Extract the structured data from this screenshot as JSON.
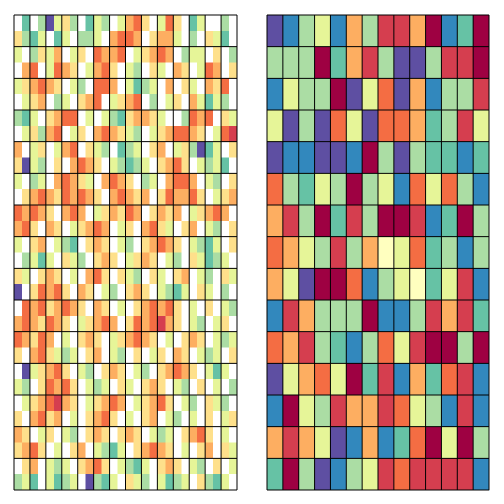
{
  "chart_data": [
    {
      "type": "heatmap",
      "colors": [
        "#9e0142",
        "#d53e4f",
        "#f46d43",
        "#fdae61",
        "#fee08b",
        "#ffffff",
        "#e6f598",
        "#abdda4",
        "#66c2a5",
        "#3288bd",
        "#5e4fa2"
      ],
      "xlim": [
        0,
        28
      ],
      "xticks": [
        0,
        2,
        4,
        6,
        8,
        10,
        12,
        14,
        16,
        18,
        20,
        22,
        24,
        26,
        28
      ],
      "ylim": [
        0,
        30
      ],
      "yticks": [
        0,
        2,
        4,
        6,
        8,
        10,
        12,
        14,
        16,
        18,
        20,
        22,
        24,
        26,
        28,
        30
      ],
      "grid": true,
      "values": [
        [
          5,
          8,
          5,
          7,
          10,
          6,
          4,
          7,
          5,
          8,
          6,
          7,
          5,
          6,
          3,
          2,
          4,
          5,
          6,
          2,
          4,
          5,
          8,
          6,
          5,
          5,
          7,
          5
        ],
        [
          4,
          7,
          8,
          6,
          5,
          8,
          6,
          5,
          7,
          7,
          6,
          5,
          3,
          2,
          2,
          3,
          5,
          4,
          3,
          3,
          6,
          5,
          7,
          5,
          4,
          6,
          8,
          5
        ],
        [
          6,
          5,
          7,
          4,
          6,
          3,
          5,
          6,
          4,
          5,
          2,
          3,
          3,
          2,
          5,
          6,
          4,
          3,
          2,
          3,
          5,
          7,
          6,
          6,
          5,
          4,
          5,
          7
        ],
        [
          5,
          3,
          2,
          5,
          6,
          2,
          3,
          4,
          5,
          6,
          3,
          2,
          4,
          5,
          6,
          7,
          5,
          4,
          6,
          5,
          3,
          4,
          5,
          6,
          2,
          3,
          5,
          4
        ],
        [
          6,
          4,
          3,
          2,
          3,
          4,
          5,
          6,
          7,
          5,
          2,
          2,
          3,
          5,
          6,
          8,
          7,
          6,
          5,
          3,
          5,
          4,
          6,
          5,
          3,
          4,
          2,
          5
        ],
        [
          5,
          6,
          4,
          3,
          5,
          7,
          6,
          5,
          4,
          3,
          2,
          5,
          6,
          4,
          3,
          2,
          5,
          7,
          5,
          6,
          4,
          5,
          3,
          6,
          8,
          6,
          7,
          5
        ],
        [
          7,
          8,
          6,
          5,
          4,
          3,
          2,
          2,
          5,
          6,
          5,
          6,
          7,
          8,
          4,
          3,
          3,
          4,
          6,
          5,
          5,
          7,
          2,
          3,
          2,
          5,
          4,
          6
        ],
        [
          5,
          6,
          4,
          7,
          3,
          2,
          5,
          6,
          4,
          5,
          3,
          2,
          3,
          4,
          6,
          7,
          5,
          6,
          4,
          3,
          2,
          2,
          3,
          4,
          5,
          6,
          2,
          1
        ],
        [
          3,
          5,
          6,
          4,
          5,
          6,
          3,
          2,
          5,
          4,
          6,
          7,
          5,
          8,
          7,
          6,
          5,
          4,
          3,
          5,
          6,
          4,
          7,
          10,
          8,
          6,
          5,
          4
        ],
        [
          4,
          10,
          6,
          7,
          5,
          4,
          5,
          3,
          2,
          3,
          4,
          5,
          6,
          7,
          8,
          7,
          6,
          5,
          4,
          3,
          2,
          4,
          5,
          6,
          7,
          6,
          8,
          5
        ],
        [
          6,
          5,
          7,
          6,
          5,
          3,
          2,
          3,
          4,
          6,
          5,
          3,
          2,
          3,
          4,
          5,
          7,
          6,
          5,
          3,
          2,
          2,
          3,
          5,
          6,
          7,
          5,
          4
        ],
        [
          5,
          4,
          3,
          2,
          3,
          4,
          2,
          3,
          2,
          3,
          4,
          5,
          3,
          2,
          3,
          4,
          3,
          5,
          4,
          2,
          3,
          3,
          2,
          4,
          5,
          6,
          4,
          3
        ],
        [
          2,
          3,
          2,
          3,
          4,
          5,
          3,
          2,
          3,
          5,
          6,
          4,
          3,
          4,
          2,
          3,
          5,
          4,
          3,
          4,
          3,
          5,
          6,
          4,
          3,
          2,
          3,
          5
        ],
        [
          3,
          2,
          4,
          5,
          3,
          4,
          5,
          6,
          4,
          3,
          2,
          3,
          5,
          6,
          4,
          5,
          3,
          2,
          4,
          6,
          5,
          4,
          3,
          5,
          6,
          7,
          5,
          4
        ],
        [
          6,
          5,
          4,
          3,
          5,
          6,
          7,
          8,
          5,
          4,
          3,
          4,
          5,
          6,
          7,
          5,
          4,
          3,
          2,
          3,
          4,
          5,
          6,
          7,
          8,
          6,
          5,
          4
        ],
        [
          5,
          7,
          6,
          8,
          6,
          5,
          4,
          6,
          7,
          5,
          4,
          3,
          4,
          5,
          6,
          4,
          3,
          4,
          5,
          6,
          7,
          5,
          4,
          6,
          8,
          7,
          6,
          5
        ],
        [
          4,
          6,
          5,
          4,
          3,
          4,
          5,
          6,
          5,
          3,
          2,
          4,
          5,
          4,
          6,
          7,
          5,
          4,
          6,
          5,
          4,
          3,
          5,
          6,
          7,
          5,
          4,
          6
        ],
        [
          10,
          5,
          4,
          2,
          3,
          2,
          4,
          5,
          3,
          4,
          5,
          6,
          7,
          5,
          4,
          3,
          4,
          5,
          6,
          7,
          8,
          6,
          5,
          4,
          6,
          5,
          7,
          5
        ],
        [
          5,
          2,
          3,
          2,
          4,
          3,
          2,
          3,
          4,
          5,
          3,
          4,
          5,
          6,
          5,
          4,
          3,
          2,
          3,
          2,
          4,
          5,
          6,
          5,
          4,
          5,
          6,
          7
        ],
        [
          3,
          2,
          3,
          4,
          2,
          3,
          4,
          5,
          6,
          4,
          3,
          2,
          3,
          5,
          4,
          2,
          3,
          2,
          1,
          3,
          4,
          5,
          6,
          7,
          5,
          6,
          4,
          5
        ],
        [
          2,
          3,
          4,
          2,
          3,
          5,
          6,
          5,
          4,
          3,
          4,
          5,
          6,
          4,
          3,
          2,
          3,
          4,
          5,
          6,
          5,
          4,
          3,
          4,
          5,
          6,
          7,
          6
        ],
        [
          4,
          5,
          3,
          2,
          4,
          6,
          7,
          6,
          5,
          4,
          3,
          5,
          6,
          7,
          5,
          4,
          5,
          6,
          4,
          5,
          3,
          4,
          5,
          6,
          7,
          6,
          5,
          4
        ],
        [
          5,
          10,
          6,
          4,
          3,
          2,
          4,
          5,
          6,
          7,
          5,
          4,
          3,
          4,
          5,
          6,
          7,
          5,
          4,
          3,
          2,
          3,
          4,
          5,
          6,
          8,
          6,
          5
        ],
        [
          6,
          7,
          5,
          4,
          2,
          3,
          2,
          4,
          5,
          6,
          7,
          6,
          5,
          4,
          6,
          5,
          4,
          3,
          4,
          5,
          6,
          7,
          5,
          4,
          5,
          6,
          5,
          7
        ],
        [
          5,
          6,
          4,
          3,
          2,
          1,
          3,
          4,
          5,
          6,
          4,
          3,
          2,
          3,
          5,
          6,
          4,
          3,
          2,
          4,
          5,
          6,
          7,
          5,
          4,
          6,
          7,
          5
        ],
        [
          4,
          5,
          3,
          2,
          4,
          3,
          5,
          6,
          5,
          4,
          3,
          2,
          4,
          5,
          6,
          5,
          4,
          3,
          5,
          6,
          7,
          5,
          6,
          5,
          4,
          5,
          6,
          4
        ],
        [
          3,
          4,
          5,
          6,
          4,
          5,
          6,
          7,
          5,
          4,
          3,
          4,
          5,
          4,
          3,
          4,
          5,
          6,
          7,
          6,
          5,
          4,
          3,
          2,
          4,
          5,
          6,
          5
        ],
        [
          4,
          3,
          2,
          4,
          5,
          6,
          5,
          4,
          3,
          5,
          6,
          7,
          8,
          6,
          5,
          4,
          3,
          2,
          3,
          4,
          5,
          6,
          5,
          4,
          3,
          5,
          4,
          6
        ],
        [
          5,
          4,
          3,
          5,
          6,
          7,
          6,
          5,
          4,
          3,
          2,
          4,
          5,
          6,
          7,
          8,
          6,
          5,
          4,
          3,
          4,
          5,
          6,
          7,
          5,
          4,
          5,
          6
        ],
        [
          7,
          6,
          8,
          5,
          6,
          8,
          7,
          6,
          5,
          10,
          7,
          8,
          6,
          5,
          4,
          6,
          7,
          5,
          6,
          8,
          7,
          6,
          5,
          4,
          7,
          8,
          6,
          5
        ]
      ]
    },
    {
      "type": "heatmap",
      "colors": [
        "#9e0142",
        "#d53e4f",
        "#f46d43",
        "#fdae61",
        "#fee08b",
        "#ffffbf",
        "#e6f598",
        "#abdda4",
        "#66c2a5",
        "#3288bd",
        "#5e4fa2"
      ],
      "xlim": [
        0,
        14
      ],
      "xticks": [
        0,
        1,
        2,
        3,
        4,
        5,
        6,
        7,
        8,
        9,
        10,
        11,
        12,
        13,
        14
      ],
      "ylim": [
        0,
        15
      ],
      "yticks": [
        0,
        1,
        2,
        3,
        4,
        5,
        6,
        7,
        8,
        9,
        10,
        11,
        12,
        13,
        14,
        15
      ],
      "grid": true,
      "values": [
        [
          10,
          9,
          7,
          6,
          9,
          3,
          7,
          1,
          1,
          3,
          0,
          9,
          8,
          0
        ],
        [
          7,
          7,
          7,
          0,
          8,
          3,
          1,
          7,
          10,
          10,
          7,
          1,
          1,
          0
        ],
        [
          9,
          6,
          7,
          7,
          0,
          10,
          6,
          2,
          10,
          3,
          9,
          7,
          7,
          1
        ],
        [
          6,
          10,
          7,
          10,
          2,
          6,
          10,
          2,
          2,
          3,
          8,
          7,
          1,
          6
        ],
        [
          10,
          9,
          9,
          10,
          10,
          9,
          0,
          7,
          10,
          7,
          8,
          8,
          9,
          8
        ],
        [
          2,
          7,
          8,
          6,
          7,
          0,
          7,
          6,
          9,
          2,
          6,
          2,
          7,
          9
        ],
        [
          3,
          1,
          7,
          0,
          8,
          1,
          7,
          0,
          0,
          1,
          9,
          8,
          0,
          7
        ],
        [
          2,
          3,
          6,
          7,
          1,
          7,
          3,
          5,
          6,
          2,
          8,
          7,
          9,
          7
        ],
        [
          3,
          6,
          10,
          0,
          0,
          2,
          9,
          7,
          6,
          5,
          8,
          6,
          1,
          9
        ],
        [
          9,
          1,
          3,
          7,
          7,
          7,
          0,
          9,
          9,
          7,
          1,
          3,
          1,
          8
        ],
        [
          2,
          3,
          1,
          7,
          8,
          9,
          7,
          2,
          6,
          1,
          0,
          0,
          7,
          0
        ],
        [
          10,
          6,
          3,
          2,
          6,
          0,
          8,
          1,
          9,
          3,
          8,
          2,
          1,
          9
        ],
        [
          9,
          0,
          6,
          7,
          1,
          3,
          3,
          1,
          2,
          6,
          7,
          9,
          1,
          9
        ],
        [
          3,
          1,
          3,
          6,
          10,
          9,
          3,
          9,
          8,
          2,
          0,
          6,
          0,
          7
        ],
        [
          8,
          0,
          7,
          10,
          9,
          7,
          6,
          1,
          2,
          1,
          1,
          1,
          1,
          9
        ]
      ]
    }
  ]
}
